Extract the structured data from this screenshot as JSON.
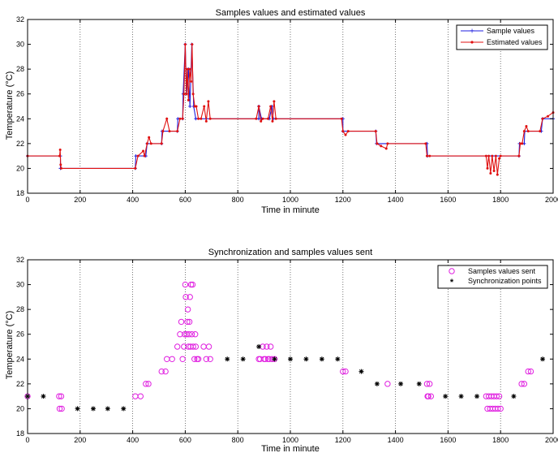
{
  "colors": {
    "sample": "#1f1fe0",
    "estimated": "#e01010",
    "sent": "#e020e0",
    "sync": "#000000",
    "grid": "#555555"
  },
  "chart_data": [
    {
      "type": "line",
      "title": "Samples values and estimated values",
      "xlabel": "Time in minute",
      "ylabel": "Temperature (°C)",
      "xlim": [
        0,
        2000
      ],
      "ylim": [
        18,
        32
      ],
      "xticks": [
        0,
        200,
        400,
        600,
        800,
        1000,
        1200,
        1400,
        1600,
        1800,
        2000
      ],
      "yticks": [
        18,
        20,
        22,
        24,
        26,
        28,
        30,
        32
      ],
      "grid": "vertical dotted at x ticks",
      "legend_position": "top-right",
      "series": [
        {
          "name": "Sample values",
          "color": "blue",
          "marker": "+",
          "points": [
            [
              0,
              21
            ],
            [
              125,
              21
            ],
            [
              125,
              20
            ],
            [
              410,
              20
            ],
            [
              412,
              21
            ],
            [
              450,
              21
            ],
            [
              455,
              22
            ],
            [
              510,
              22
            ],
            [
              512,
              23
            ],
            [
              570,
              23
            ],
            [
              572,
              24
            ],
            [
              590,
              24
            ],
            [
              592,
              26
            ],
            [
              600,
              30
            ],
            [
              605,
              26
            ],
            [
              612,
              28
            ],
            [
              618,
              25
            ],
            [
              625,
              30
            ],
            [
              632,
              25
            ],
            [
              640,
              24
            ],
            [
              880,
              24
            ],
            [
              880,
              25
            ],
            [
              890,
              24
            ],
            [
              920,
              24
            ],
            [
              930,
              25
            ],
            [
              935,
              24
            ],
            [
              1200,
              24
            ],
            [
              1200,
              23
            ],
            [
              1325,
              23
            ],
            [
              1328,
              22
            ],
            [
              1520,
              22
            ],
            [
              1522,
              21
            ],
            [
              1870,
              21
            ],
            [
              1872,
              22
            ],
            [
              1890,
              22
            ],
            [
              1892,
              23
            ],
            [
              1955,
              23
            ],
            [
              1960,
              24
            ],
            [
              2000,
              24
            ]
          ]
        },
        {
          "name": "Estimated values",
          "color": "red",
          "marker": "*",
          "points": [
            [
              0,
              21
            ],
            [
              122,
              21
            ],
            [
              124,
              21.5
            ],
            [
              126,
              20.3
            ],
            [
              128,
              20
            ],
            [
              410,
              20
            ],
            [
              420,
              21
            ],
            [
              440,
              21.4
            ],
            [
              445,
              21
            ],
            [
              455,
              22
            ],
            [
              462,
              22.5
            ],
            [
              470,
              22
            ],
            [
              510,
              22
            ],
            [
              515,
              23
            ],
            [
              530,
              24
            ],
            [
              540,
              23
            ],
            [
              570,
              23
            ],
            [
              580,
              24
            ],
            [
              590,
              24
            ],
            [
              595,
              26
            ],
            [
              600,
              30
            ],
            [
              604,
              26
            ],
            [
              608,
              28
            ],
            [
              612,
              25.5
            ],
            [
              617,
              28
            ],
            [
              622,
              27
            ],
            [
              626,
              30
            ],
            [
              630,
              26
            ],
            [
              636,
              25
            ],
            [
              642,
              25
            ],
            [
              650,
              24
            ],
            [
              660,
              24
            ],
            [
              672,
              25
            ],
            [
              680,
              23.8
            ],
            [
              688,
              25.4
            ],
            [
              695,
              24
            ],
            [
              870,
              24
            ],
            [
              880,
              25
            ],
            [
              888,
              23.8
            ],
            [
              895,
              24
            ],
            [
              915,
              24
            ],
            [
              925,
              25
            ],
            [
              932,
              23.8
            ],
            [
              938,
              25.4
            ],
            [
              945,
              24
            ],
            [
              1195,
              24
            ],
            [
              1200,
              23
            ],
            [
              1210,
              22.7
            ],
            [
              1220,
              23
            ],
            [
              1325,
              23
            ],
            [
              1330,
              22
            ],
            [
              1345,
              21.8
            ],
            [
              1365,
              21.6
            ],
            [
              1370,
              22
            ],
            [
              1515,
              22
            ],
            [
              1520,
              21
            ],
            [
              1530,
              21
            ],
            [
              1745,
              21
            ],
            [
              1750,
              20
            ],
            [
              1755,
              21
            ],
            [
              1762,
              19.6
            ],
            [
              1768,
              21
            ],
            [
              1775,
              19.8
            ],
            [
              1782,
              21
            ],
            [
              1788,
              19.5
            ],
            [
              1795,
              20.8
            ],
            [
              1800,
              21
            ],
            [
              1870,
              21
            ],
            [
              1875,
              22
            ],
            [
              1882,
              22
            ],
            [
              1890,
              23
            ],
            [
              1898,
              23.4
            ],
            [
              1905,
              23
            ],
            [
              1950,
              23
            ],
            [
              1960,
              24
            ],
            [
              1980,
              24.2
            ],
            [
              2000,
              24.5
            ]
          ]
        }
      ]
    },
    {
      "type": "scatter",
      "title": "Synchronization and samples values sent",
      "xlabel": "Time in minute",
      "ylabel": "Temperature (°C)",
      "xlim": [
        0,
        2000
      ],
      "ylim": [
        18,
        32
      ],
      "xticks": [
        0,
        200,
        400,
        600,
        800,
        1000,
        1200,
        1400,
        1600,
        1800,
        2000
      ],
      "yticks": [
        18,
        20,
        22,
        24,
        26,
        28,
        30,
        32
      ],
      "grid": "vertical dotted at x ticks",
      "legend_position": "top-right",
      "series": [
        {
          "name": "Samples values sent",
          "color": "magenta",
          "marker": "o",
          "points": [
            [
              0,
              21
            ],
            [
              120,
              21
            ],
            [
              122,
              20
            ],
            [
              128,
              21
            ],
            [
              130,
              20
            ],
            [
              410,
              21
            ],
            [
              430,
              21
            ],
            [
              450,
              22
            ],
            [
              460,
              22
            ],
            [
              510,
              23
            ],
            [
              525,
              23
            ],
            [
              530,
              24
            ],
            [
              550,
              24
            ],
            [
              570,
              25
            ],
            [
              580,
              26
            ],
            [
              585,
              27
            ],
            [
              590,
              24
            ],
            [
              595,
              25
            ],
            [
              598,
              26
            ],
            [
              600,
              30
            ],
            [
              602,
              29
            ],
            [
              605,
              26
            ],
            [
              608,
              27
            ],
            [
              610,
              28
            ],
            [
              612,
              25
            ],
            [
              614,
              26
            ],
            [
              616,
              27
            ],
            [
              618,
              29
            ],
            [
              620,
              25
            ],
            [
              622,
              30
            ],
            [
              625,
              26
            ],
            [
              628,
              30
            ],
            [
              630,
              25
            ],
            [
              635,
              24
            ],
            [
              638,
              26
            ],
            [
              640,
              25
            ],
            [
              645,
              24
            ],
            [
              650,
              24
            ],
            [
              670,
              25
            ],
            [
              680,
              24
            ],
            [
              690,
              25
            ],
            [
              695,
              24
            ],
            [
              880,
              24
            ],
            [
              885,
              24
            ],
            [
              895,
              25
            ],
            [
              900,
              24
            ],
            [
              905,
              24
            ],
            [
              910,
              25
            ],
            [
              915,
              24
            ],
            [
              920,
              24
            ],
            [
              925,
              25
            ],
            [
              930,
              24
            ],
            [
              940,
              24
            ],
            [
              1200,
              23
            ],
            [
              1210,
              23
            ],
            [
              1370,
              22
            ],
            [
              1520,
              22
            ],
            [
              1522,
              21
            ],
            [
              1525,
              21
            ],
            [
              1530,
              22
            ],
            [
              1535,
              21
            ],
            [
              1745,
              21
            ],
            [
              1750,
              20
            ],
            [
              1755,
              21
            ],
            [
              1760,
              20
            ],
            [
              1765,
              21
            ],
            [
              1770,
              20
            ],
            [
              1775,
              21
            ],
            [
              1780,
              20
            ],
            [
              1785,
              21
            ],
            [
              1790,
              20
            ],
            [
              1795,
              21
            ],
            [
              1800,
              20
            ],
            [
              1880,
              22
            ],
            [
              1890,
              22
            ],
            [
              1905,
              23
            ],
            [
              1915,
              23
            ]
          ]
        },
        {
          "name": "Synchronization points",
          "color": "black",
          "marker": "*",
          "points": [
            [
              0,
              21
            ],
            [
              60,
              21
            ],
            [
              190,
              20
            ],
            [
              250,
              20
            ],
            [
              305,
              20
            ],
            [
              365,
              20
            ],
            [
              760,
              24
            ],
            [
              820,
              24
            ],
            [
              880,
              25
            ],
            [
              940,
              24
            ],
            [
              1000,
              24
            ],
            [
              1060,
              24
            ],
            [
              1120,
              24
            ],
            [
              1180,
              24
            ],
            [
              1270,
              23
            ],
            [
              1330,
              22
            ],
            [
              1420,
              22
            ],
            [
              1490,
              22
            ],
            [
              1590,
              21
            ],
            [
              1650,
              21
            ],
            [
              1710,
              21
            ],
            [
              1850,
              21
            ],
            [
              1960,
              24
            ]
          ]
        }
      ]
    }
  ]
}
